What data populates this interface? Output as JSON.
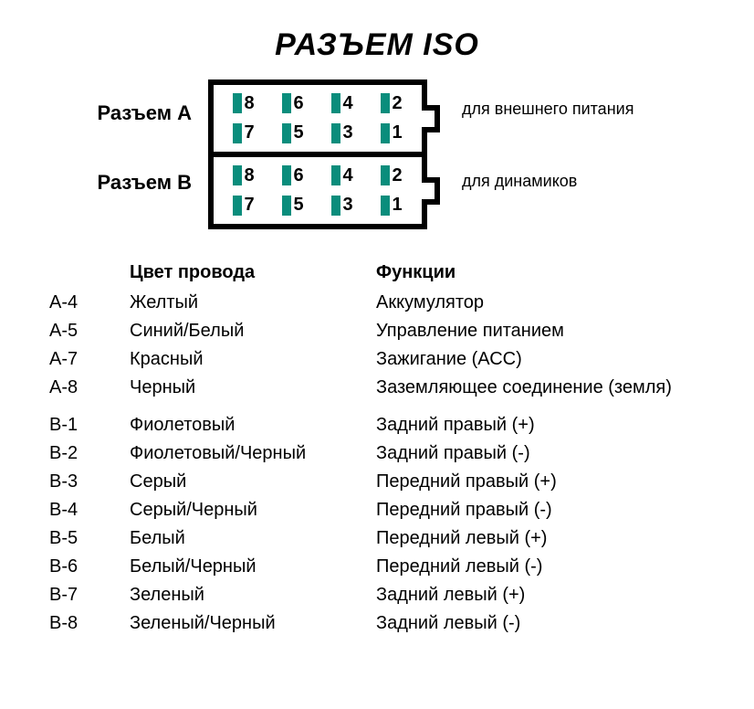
{
  "title": "РАЗЪЕМ ISO",
  "diagram": {
    "left_labels": {
      "a": "Разъем А",
      "b": "Разъем В"
    },
    "right_labels": {
      "a": "для внешнего питания",
      "b": "для динамиков"
    },
    "pin_color": "#0a8d7c",
    "border_color": "#000000",
    "background_color": "#ffffff",
    "connectors": {
      "a": {
        "rows": [
          [
            "8",
            "6",
            "4",
            "2"
          ],
          [
            "7",
            "5",
            "3",
            "1"
          ]
        ]
      },
      "b": {
        "rows": [
          [
            "8",
            "6",
            "4",
            "2"
          ],
          [
            "7",
            "5",
            "3",
            "1"
          ]
        ]
      }
    }
  },
  "table": {
    "headers": {
      "pin": "",
      "color": "Цвет провода",
      "func": "Функции"
    },
    "group_a": [
      {
        "pin": "А-4",
        "color": "Желтый",
        "func": "Аккумулятор"
      },
      {
        "pin": "А-5",
        "color": "Синий/Белый",
        "func": "Управление питанием"
      },
      {
        "pin": "А-7",
        "color": "Красный",
        "func": "Зажигание (АСС)"
      },
      {
        "pin": "А-8",
        "color": "Черный",
        "func": "Заземляющее соединение (земля)"
      }
    ],
    "group_b": [
      {
        "pin": "В-1",
        "color": "Фиолетовый",
        "func": "Задний правый (+)"
      },
      {
        "pin": "В-2",
        "color": "Фиолетовый/Черный",
        "func": "Задний правый (-)"
      },
      {
        "pin": "В-3",
        "color": "Серый",
        "func": "Передний правый (+)"
      },
      {
        "pin": "В-4",
        "color": "Серый/Черный",
        "func": "Передний правый (-)"
      },
      {
        "pin": "В-5",
        "color": "Белый",
        "func": "Передний левый (+)"
      },
      {
        "pin": "В-6",
        "color": "Белый/Черный",
        "func": "Передний левый (-)"
      },
      {
        "pin": "В-7",
        "color": "Зеленый",
        "func": "Задний левый (+)"
      },
      {
        "pin": "В-8",
        "color": "Зеленый/Черный",
        "func": "Задний левый (-)"
      }
    ]
  },
  "styling": {
    "title_fontsize": 34,
    "label_fontsize": 22,
    "rightlabel_fontsize": 18,
    "table_fontsize": 20,
    "pin_fontsize": 20,
    "text_color": "#000000"
  }
}
